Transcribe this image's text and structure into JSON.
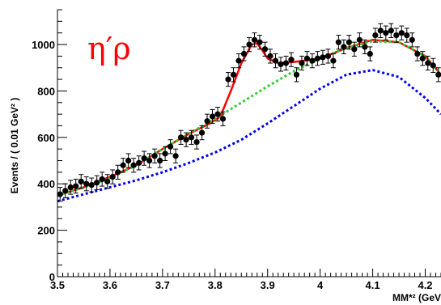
{
  "chart_data": {
    "type": "scatter",
    "title": "",
    "annotation": "η′ρ",
    "annotation_color": "#ff0000",
    "xlabel": "MM*² (GeV",
    "ylabel": "Events / ( 0.01 GeV² )",
    "xlim": [
      3.5,
      4.23
    ],
    "ylim": [
      0,
      1150
    ],
    "x_ticks": [
      3.5,
      3.6,
      3.7,
      3.8,
      3.9,
      4.0,
      4.1,
      4.2
    ],
    "x_tick_labels": [
      "3.5",
      "3.6",
      "3.7",
      "3.8",
      "3.9",
      "4",
      "4.1",
      "4.2"
    ],
    "y_ticks": [
      0,
      200,
      400,
      600,
      800,
      1000
    ],
    "y_tick_labels": [
      "0",
      "200",
      "400",
      "600",
      "800",
      "1000"
    ],
    "grid": false,
    "legend": "none",
    "series": [
      {
        "kind": "points-with-errors",
        "color": "#000000",
        "x": [
          3.505,
          3.515,
          3.525,
          3.535,
          3.545,
          3.555,
          3.565,
          3.575,
          3.585,
          3.595,
          3.605,
          3.615,
          3.625,
          3.635,
          3.645,
          3.655,
          3.665,
          3.675,
          3.685,
          3.695,
          3.705,
          3.715,
          3.725,
          3.735,
          3.745,
          3.755,
          3.765,
          3.775,
          3.785,
          3.795,
          3.805,
          3.815,
          3.825,
          3.835,
          3.845,
          3.855,
          3.865,
          3.875,
          3.885,
          3.895,
          3.905,
          3.915,
          3.925,
          3.935,
          3.945,
          3.955,
          3.965,
          3.975,
          3.985,
          3.995,
          4.005,
          4.015,
          4.025,
          4.035,
          4.045,
          4.055,
          4.065,
          4.075,
          4.085,
          4.095,
          4.105,
          4.115,
          4.125,
          4.135,
          4.145,
          4.155,
          4.165,
          4.175,
          4.185,
          4.195,
          4.205,
          4.215,
          4.225
        ],
        "y": [
          355,
          370,
          385,
          390,
          410,
          400,
          395,
          405,
          420,
          410,
          430,
          450,
          480,
          500,
          480,
          490,
          510,
          500,
          520,
          500,
          530,
          560,
          520,
          600,
          590,
          600,
          580,
          620,
          670,
          690,
          700,
          680,
          850,
          870,
          930,
          960,
          1000,
          1020,
          1010,
          980,
          950,
          930,
          915,
          920,
          935,
          870,
          920,
          940,
          930,
          940,
          945,
          950,
          930,
          1010,
          990,
          1010,
          980,
          1020,
          990,
          960,
          1040,
          1060,
          1050,
          1060,
          1040,
          1050,
          1040,
          1020,
          960,
          940,
          920,
          910,
          870
        ],
        "yerr": 30
      },
      {
        "name": "",
        "kind": "line",
        "style": "solid",
        "color": "#ff0000",
        "x": [
          3.5,
          3.55,
          3.6,
          3.65,
          3.7,
          3.75,
          3.79,
          3.81,
          3.83,
          3.85,
          3.87,
          3.88,
          3.89,
          3.9,
          3.92,
          3.95,
          4.0,
          4.05,
          4.1,
          4.15,
          4.2,
          4.23
        ],
        "y": [
          350,
          385,
          430,
          480,
          550,
          615,
          660,
          690,
          800,
          920,
          1000,
          1005,
          975,
          940,
          920,
          925,
          940,
          985,
          1020,
          1010,
          950,
          870
        ]
      },
      {
        "name": "",
        "kind": "line",
        "style": "dotted",
        "color": "#33cc33",
        "x": [
          3.5,
          3.55,
          3.6,
          3.65,
          3.7,
          3.75,
          3.8,
          3.85,
          3.9,
          3.95,
          4.0,
          4.05,
          4.1,
          4.15,
          4.2,
          4.23
        ],
        "y": [
          350,
          385,
          425,
          480,
          550,
          615,
          680,
          750,
          820,
          885,
          940,
          985,
          1015,
          1010,
          950,
          870
        ]
      },
      {
        "name": "",
        "kind": "line",
        "style": "dotted",
        "color": "#0000ee",
        "x": [
          3.5,
          3.55,
          3.6,
          3.65,
          3.7,
          3.75,
          3.8,
          3.85,
          3.9,
          3.95,
          4.0,
          4.05,
          4.1,
          4.15,
          4.2,
          4.23
        ],
        "y": [
          325,
          355,
          385,
          415,
          450,
          490,
          535,
          590,
          660,
          735,
          810,
          870,
          890,
          860,
          770,
          700
        ]
      }
    ]
  }
}
